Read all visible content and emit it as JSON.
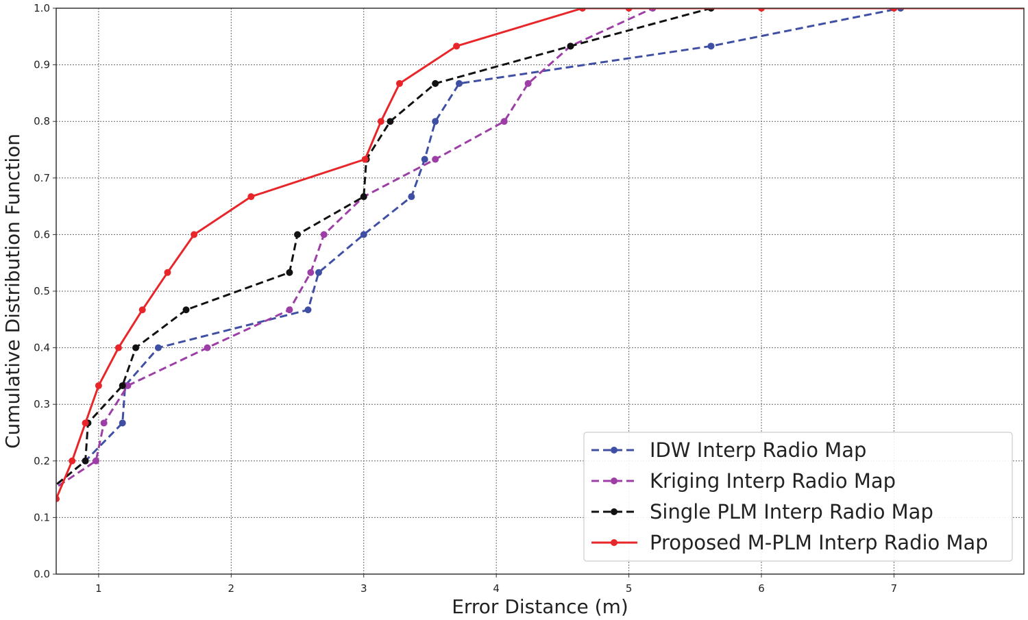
{
  "chart_data": {
    "type": "line",
    "xlabel": "Error Distance (m)",
    "ylabel": "Cumulative Distribution Function",
    "xlim": [
      0.68,
      7.98
    ],
    "ylim": [
      0.0,
      1.0
    ],
    "xticks": [
      1,
      2,
      3,
      4,
      5,
      6,
      7
    ],
    "yticks": [
      0.0,
      0.1,
      0.2,
      0.3,
      0.4,
      0.5,
      0.6,
      0.7,
      0.8,
      0.9,
      1.0
    ],
    "xtick_labels": [
      "1",
      "2",
      "3",
      "4",
      "5",
      "6",
      "7"
    ],
    "ytick_labels": [
      "0.0",
      "0.1",
      "0.2",
      "0.3",
      "0.4",
      "0.5",
      "0.6",
      "0.7",
      "0.8",
      "0.9",
      "1.0"
    ],
    "grid": true,
    "legend_position": "lower-right",
    "series": [
      {
        "name": "IDW Interp Radio Map",
        "color": "#3f4fa3",
        "dashed": true,
        "x": [
          0.55,
          0.9,
          1.18,
          1.2,
          1.45,
          2.58,
          2.66,
          3.0,
          3.36,
          3.46,
          3.54,
          3.72,
          5.62,
          7.05
        ],
        "y": [
          0.133,
          0.2,
          0.267,
          0.333,
          0.4,
          0.467,
          0.533,
          0.6,
          0.667,
          0.733,
          0.8,
          0.867,
          0.933,
          1.0
        ]
      },
      {
        "name": "Kriging Interp Radio Map",
        "color": "#9c3ea6",
        "dashed": true,
        "x": [
          0.55,
          0.98,
          1.04,
          1.22,
          1.82,
          2.44,
          2.6,
          2.7,
          3.0,
          3.54,
          4.06,
          4.24,
          4.56,
          5.18
        ],
        "y": [
          0.133,
          0.2,
          0.267,
          0.333,
          0.4,
          0.467,
          0.533,
          0.6,
          0.667,
          0.733,
          0.8,
          0.867,
          0.933,
          1.0
        ]
      },
      {
        "name": "Single PLM Interp Radio Map",
        "color": "#111111",
        "dashed": true,
        "x": [
          0.55,
          0.9,
          0.92,
          1.18,
          1.28,
          1.66,
          2.44,
          2.5,
          3.0,
          3.02,
          3.2,
          3.54,
          4.56,
          5.62
        ],
        "y": [
          0.133,
          0.2,
          0.267,
          0.333,
          0.4,
          0.467,
          0.533,
          0.6,
          0.667,
          0.733,
          0.8,
          0.867,
          0.933,
          1.0
        ]
      },
      {
        "name": "Proposed M-PLM Interp Radio Map",
        "color": "#e8262a",
        "dashed": false,
        "x": [
          0.68,
          0.8,
          0.9,
          1.0,
          1.15,
          1.33,
          1.52,
          1.72,
          2.15,
          3.01,
          3.13,
          3.27,
          3.7,
          4.65,
          5.0,
          6.0,
          7.0,
          8.0
        ],
        "y": [
          0.133,
          0.2,
          0.267,
          0.333,
          0.4,
          0.467,
          0.533,
          0.6,
          0.667,
          0.733,
          0.8,
          0.867,
          0.933,
          1.0,
          1.0,
          1.0,
          1.0,
          1.0
        ]
      }
    ]
  }
}
